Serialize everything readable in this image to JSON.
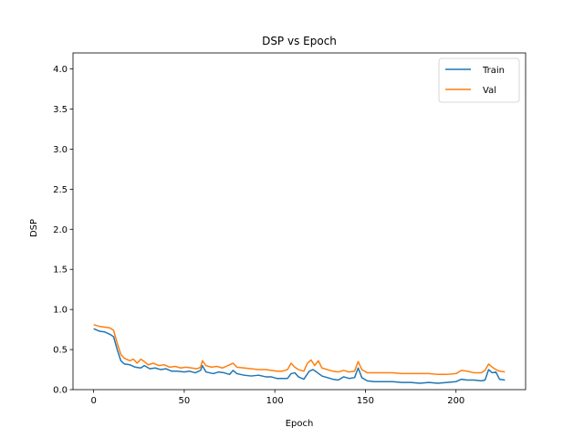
{
  "chart_data": {
    "type": "line",
    "title": "DSP vs Epoch",
    "xlabel": "Epoch",
    "ylabel": "DSP",
    "xlim": [
      -11.4,
      238.4
    ],
    "ylim": [
      0.0,
      4.2
    ],
    "xticks": [
      0,
      50,
      100,
      150,
      200
    ],
    "yticks": [
      0.0,
      0.5,
      1.0,
      1.5,
      2.0,
      2.5,
      3.0,
      3.5,
      4.0
    ],
    "grid": false,
    "legend_position": "top-right",
    "series": [
      {
        "name": "Train",
        "color": "#1f77b4",
        "points": [
          [
            0,
            0.76
          ],
          [
            3,
            0.73
          ],
          [
            6,
            0.72
          ],
          [
            9,
            0.69
          ],
          [
            11,
            0.66
          ],
          [
            13,
            0.5
          ],
          [
            15,
            0.36
          ],
          [
            17,
            0.32
          ],
          [
            20,
            0.31
          ],
          [
            23,
            0.28
          ],
          [
            26,
            0.27
          ],
          [
            28,
            0.3
          ],
          [
            31,
            0.26
          ],
          [
            34,
            0.27
          ],
          [
            37,
            0.25
          ],
          [
            40,
            0.26
          ],
          [
            43,
            0.23
          ],
          [
            46,
            0.23
          ],
          [
            50,
            0.22
          ],
          [
            53,
            0.23
          ],
          [
            56,
            0.21
          ],
          [
            59,
            0.24
          ],
          [
            60,
            0.3
          ],
          [
            62,
            0.22
          ],
          [
            66,
            0.2
          ],
          [
            69,
            0.22
          ],
          [
            72,
            0.21
          ],
          [
            75,
            0.19
          ],
          [
            77,
            0.24
          ],
          [
            79,
            0.2
          ],
          [
            83,
            0.18
          ],
          [
            87,
            0.17
          ],
          [
            91,
            0.18
          ],
          [
            95,
            0.16
          ],
          [
            98,
            0.16
          ],
          [
            101,
            0.14
          ],
          [
            104,
            0.14
          ],
          [
            107,
            0.14
          ],
          [
            109,
            0.2
          ],
          [
            111,
            0.21
          ],
          [
            113,
            0.16
          ],
          [
            116,
            0.13
          ],
          [
            119,
            0.23
          ],
          [
            121,
            0.25
          ],
          [
            123,
            0.22
          ],
          [
            126,
            0.17
          ],
          [
            129,
            0.15
          ],
          [
            132,
            0.13
          ],
          [
            135,
            0.12
          ],
          [
            138,
            0.16
          ],
          [
            141,
            0.14
          ],
          [
            144,
            0.15
          ],
          [
            146,
            0.27
          ],
          [
            148,
            0.15
          ],
          [
            151,
            0.11
          ],
          [
            155,
            0.1
          ],
          [
            160,
            0.1
          ],
          [
            165,
            0.1
          ],
          [
            170,
            0.09
          ],
          [
            175,
            0.09
          ],
          [
            180,
            0.08
          ],
          [
            185,
            0.09
          ],
          [
            190,
            0.08
          ],
          [
            195,
            0.09
          ],
          [
            200,
            0.1
          ],
          [
            203,
            0.13
          ],
          [
            206,
            0.12
          ],
          [
            210,
            0.12
          ],
          [
            214,
            0.11
          ],
          [
            216,
            0.12
          ],
          [
            218,
            0.25
          ],
          [
            220,
            0.21
          ],
          [
            222,
            0.22
          ],
          [
            224,
            0.13
          ],
          [
            227,
            0.12
          ]
        ]
      },
      {
        "name": "Val",
        "color": "#ff7f0e",
        "points": [
          [
            0,
            0.81
          ],
          [
            3,
            0.79
          ],
          [
            6,
            0.78
          ],
          [
            9,
            0.77
          ],
          [
            11,
            0.74
          ],
          [
            13,
            0.58
          ],
          [
            15,
            0.44
          ],
          [
            17,
            0.39
          ],
          [
            20,
            0.36
          ],
          [
            22,
            0.38
          ],
          [
            24,
            0.33
          ],
          [
            26,
            0.38
          ],
          [
            28,
            0.35
          ],
          [
            30,
            0.31
          ],
          [
            33,
            0.33
          ],
          [
            36,
            0.3
          ],
          [
            39,
            0.31
          ],
          [
            42,
            0.28
          ],
          [
            45,
            0.29
          ],
          [
            48,
            0.27
          ],
          [
            51,
            0.28
          ],
          [
            54,
            0.27
          ],
          [
            57,
            0.26
          ],
          [
            59,
            0.28
          ],
          [
            60,
            0.36
          ],
          [
            62,
            0.3
          ],
          [
            65,
            0.28
          ],
          [
            68,
            0.29
          ],
          [
            71,
            0.27
          ],
          [
            74,
            0.3
          ],
          [
            77,
            0.33
          ],
          [
            79,
            0.28
          ],
          [
            83,
            0.27
          ],
          [
            87,
            0.26
          ],
          [
            91,
            0.25
          ],
          [
            95,
            0.25
          ],
          [
            98,
            0.24
          ],
          [
            101,
            0.23
          ],
          [
            104,
            0.23
          ],
          [
            107,
            0.25
          ],
          [
            109,
            0.33
          ],
          [
            111,
            0.28
          ],
          [
            113,
            0.25
          ],
          [
            116,
            0.23
          ],
          [
            118,
            0.33
          ],
          [
            120,
            0.37
          ],
          [
            122,
            0.3
          ],
          [
            124,
            0.36
          ],
          [
            126,
            0.27
          ],
          [
            129,
            0.25
          ],
          [
            132,
            0.23
          ],
          [
            135,
            0.22
          ],
          [
            138,
            0.24
          ],
          [
            141,
            0.22
          ],
          [
            144,
            0.23
          ],
          [
            146,
            0.35
          ],
          [
            148,
            0.25
          ],
          [
            151,
            0.21
          ],
          [
            155,
            0.21
          ],
          [
            160,
            0.21
          ],
          [
            165,
            0.21
          ],
          [
            170,
            0.2
          ],
          [
            175,
            0.2
          ],
          [
            180,
            0.2
          ],
          [
            185,
            0.2
          ],
          [
            190,
            0.19
          ],
          [
            195,
            0.19
          ],
          [
            200,
            0.2
          ],
          [
            203,
            0.24
          ],
          [
            206,
            0.23
          ],
          [
            210,
            0.21
          ],
          [
            214,
            0.21
          ],
          [
            216,
            0.24
          ],
          [
            218,
            0.32
          ],
          [
            220,
            0.28
          ],
          [
            222,
            0.25
          ],
          [
            224,
            0.23
          ],
          [
            227,
            0.22
          ]
        ]
      }
    ]
  }
}
